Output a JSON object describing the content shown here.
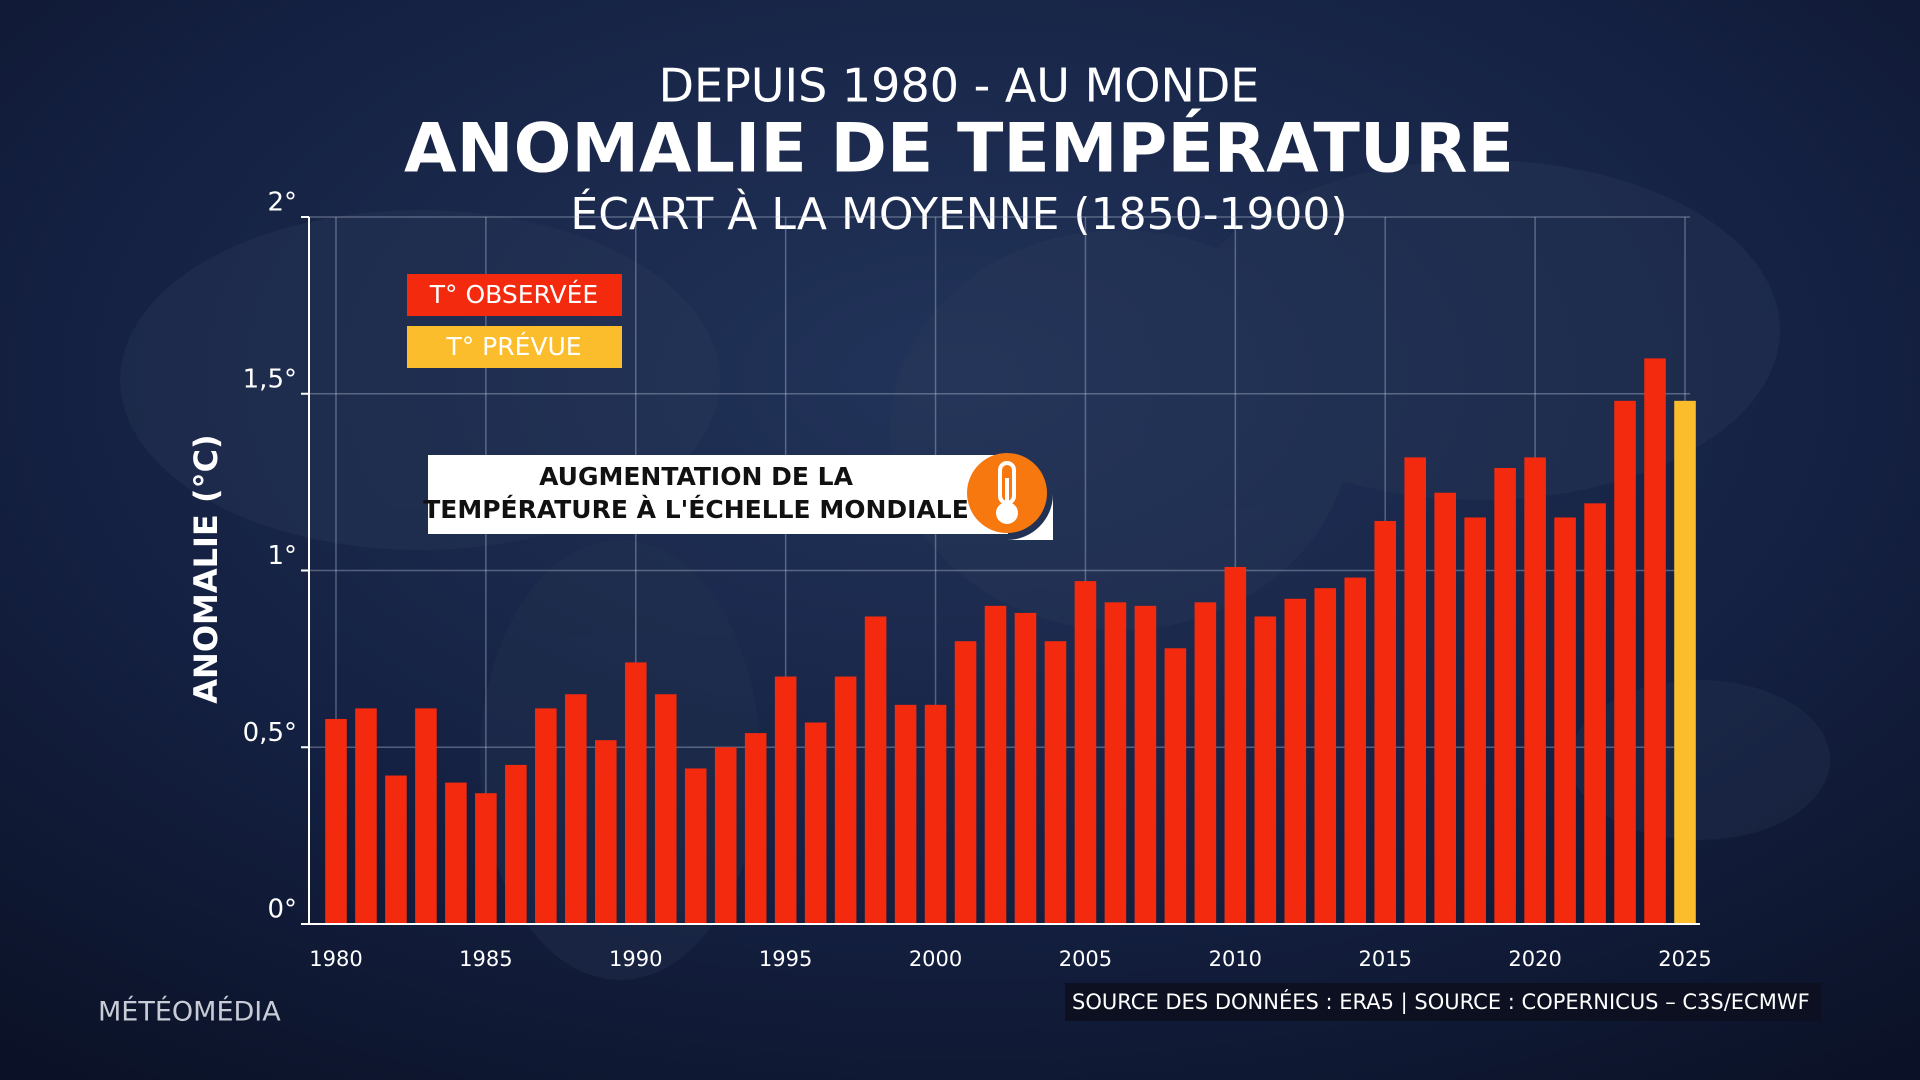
{
  "chart_data": {
    "type": "bar",
    "supertitle": "DEPUIS 1980 - AU MONDE",
    "title": "ANOMALIE DE TEMPÉRATURE",
    "subtitle": "ÉCART À LA MOYENNE (1850-1900)",
    "y_label": "ANOMALIE (°C)",
    "annotation": [
      "AUGMENTATION DE LA",
      "TEMPÉRATURE À L'ÉCHELLE MONDIALE"
    ],
    "x": [
      1980,
      1981,
      1982,
      1983,
      1984,
      1985,
      1986,
      1987,
      1988,
      1989,
      1990,
      1991,
      1992,
      1993,
      1994,
      1995,
      1996,
      1997,
      1998,
      1999,
      2000,
      2001,
      2002,
      2003,
      2004,
      2005,
      2006,
      2007,
      2008,
      2009,
      2010,
      2011,
      2012,
      2013,
      2014,
      2015,
      2016,
      2017,
      2018,
      2019,
      2020,
      2021,
      2022,
      2023,
      2024,
      2025
    ],
    "series": [
      {
        "name": "T° OBSERVÉE",
        "color": "#f42a0e",
        "values": [
          0.58,
          0.61,
          0.42,
          0.61,
          0.4,
          0.37,
          0.45,
          0.61,
          0.65,
          0.52,
          0.74,
          0.65,
          0.44,
          0.5,
          0.54,
          0.7,
          0.57,
          0.7,
          0.87,
          0.62,
          0.62,
          0.8,
          0.9,
          0.88,
          0.8,
          0.97,
          0.91,
          0.9,
          0.78,
          0.91,
          1.01,
          0.87,
          0.92,
          0.95,
          0.98,
          1.14,
          1.32,
          1.22,
          1.15,
          1.29,
          1.32,
          1.15,
          1.19,
          1.48,
          1.6,
          null
        ]
      },
      {
        "name": "T° PRÉVUE",
        "color": "#fbbd2c",
        "values": [
          null,
          null,
          null,
          null,
          null,
          null,
          null,
          null,
          null,
          null,
          null,
          null,
          null,
          null,
          null,
          null,
          null,
          null,
          null,
          null,
          null,
          null,
          null,
          null,
          null,
          null,
          null,
          null,
          null,
          null,
          null,
          null,
          null,
          null,
          null,
          null,
          null,
          null,
          null,
          null,
          null,
          null,
          null,
          null,
          null,
          1.48
        ]
      }
    ],
    "xlim": [
      1979.1,
      2025.5
    ],
    "xticks": [
      1980,
      1985,
      1990,
      1995,
      2000,
      2005,
      2010,
      2015,
      2020,
      2025
    ],
    "ylim": [
      0,
      2
    ],
    "yticks": [
      {
        "value": 0,
        "label": "0°"
      },
      {
        "value": 0.5,
        "label": "0,5°"
      },
      {
        "value": 1,
        "label": "1°"
      },
      {
        "value": 1.5,
        "label": "1,5°"
      },
      {
        "value": 2,
        "label": "2°"
      }
    ],
    "grid": true
  },
  "brand": "MÉTÉOMÉDIA",
  "source": "SOURCE DES DONNÉES : ERA5 | SOURCE : COPERNICUS – C3S/ECMWF"
}
